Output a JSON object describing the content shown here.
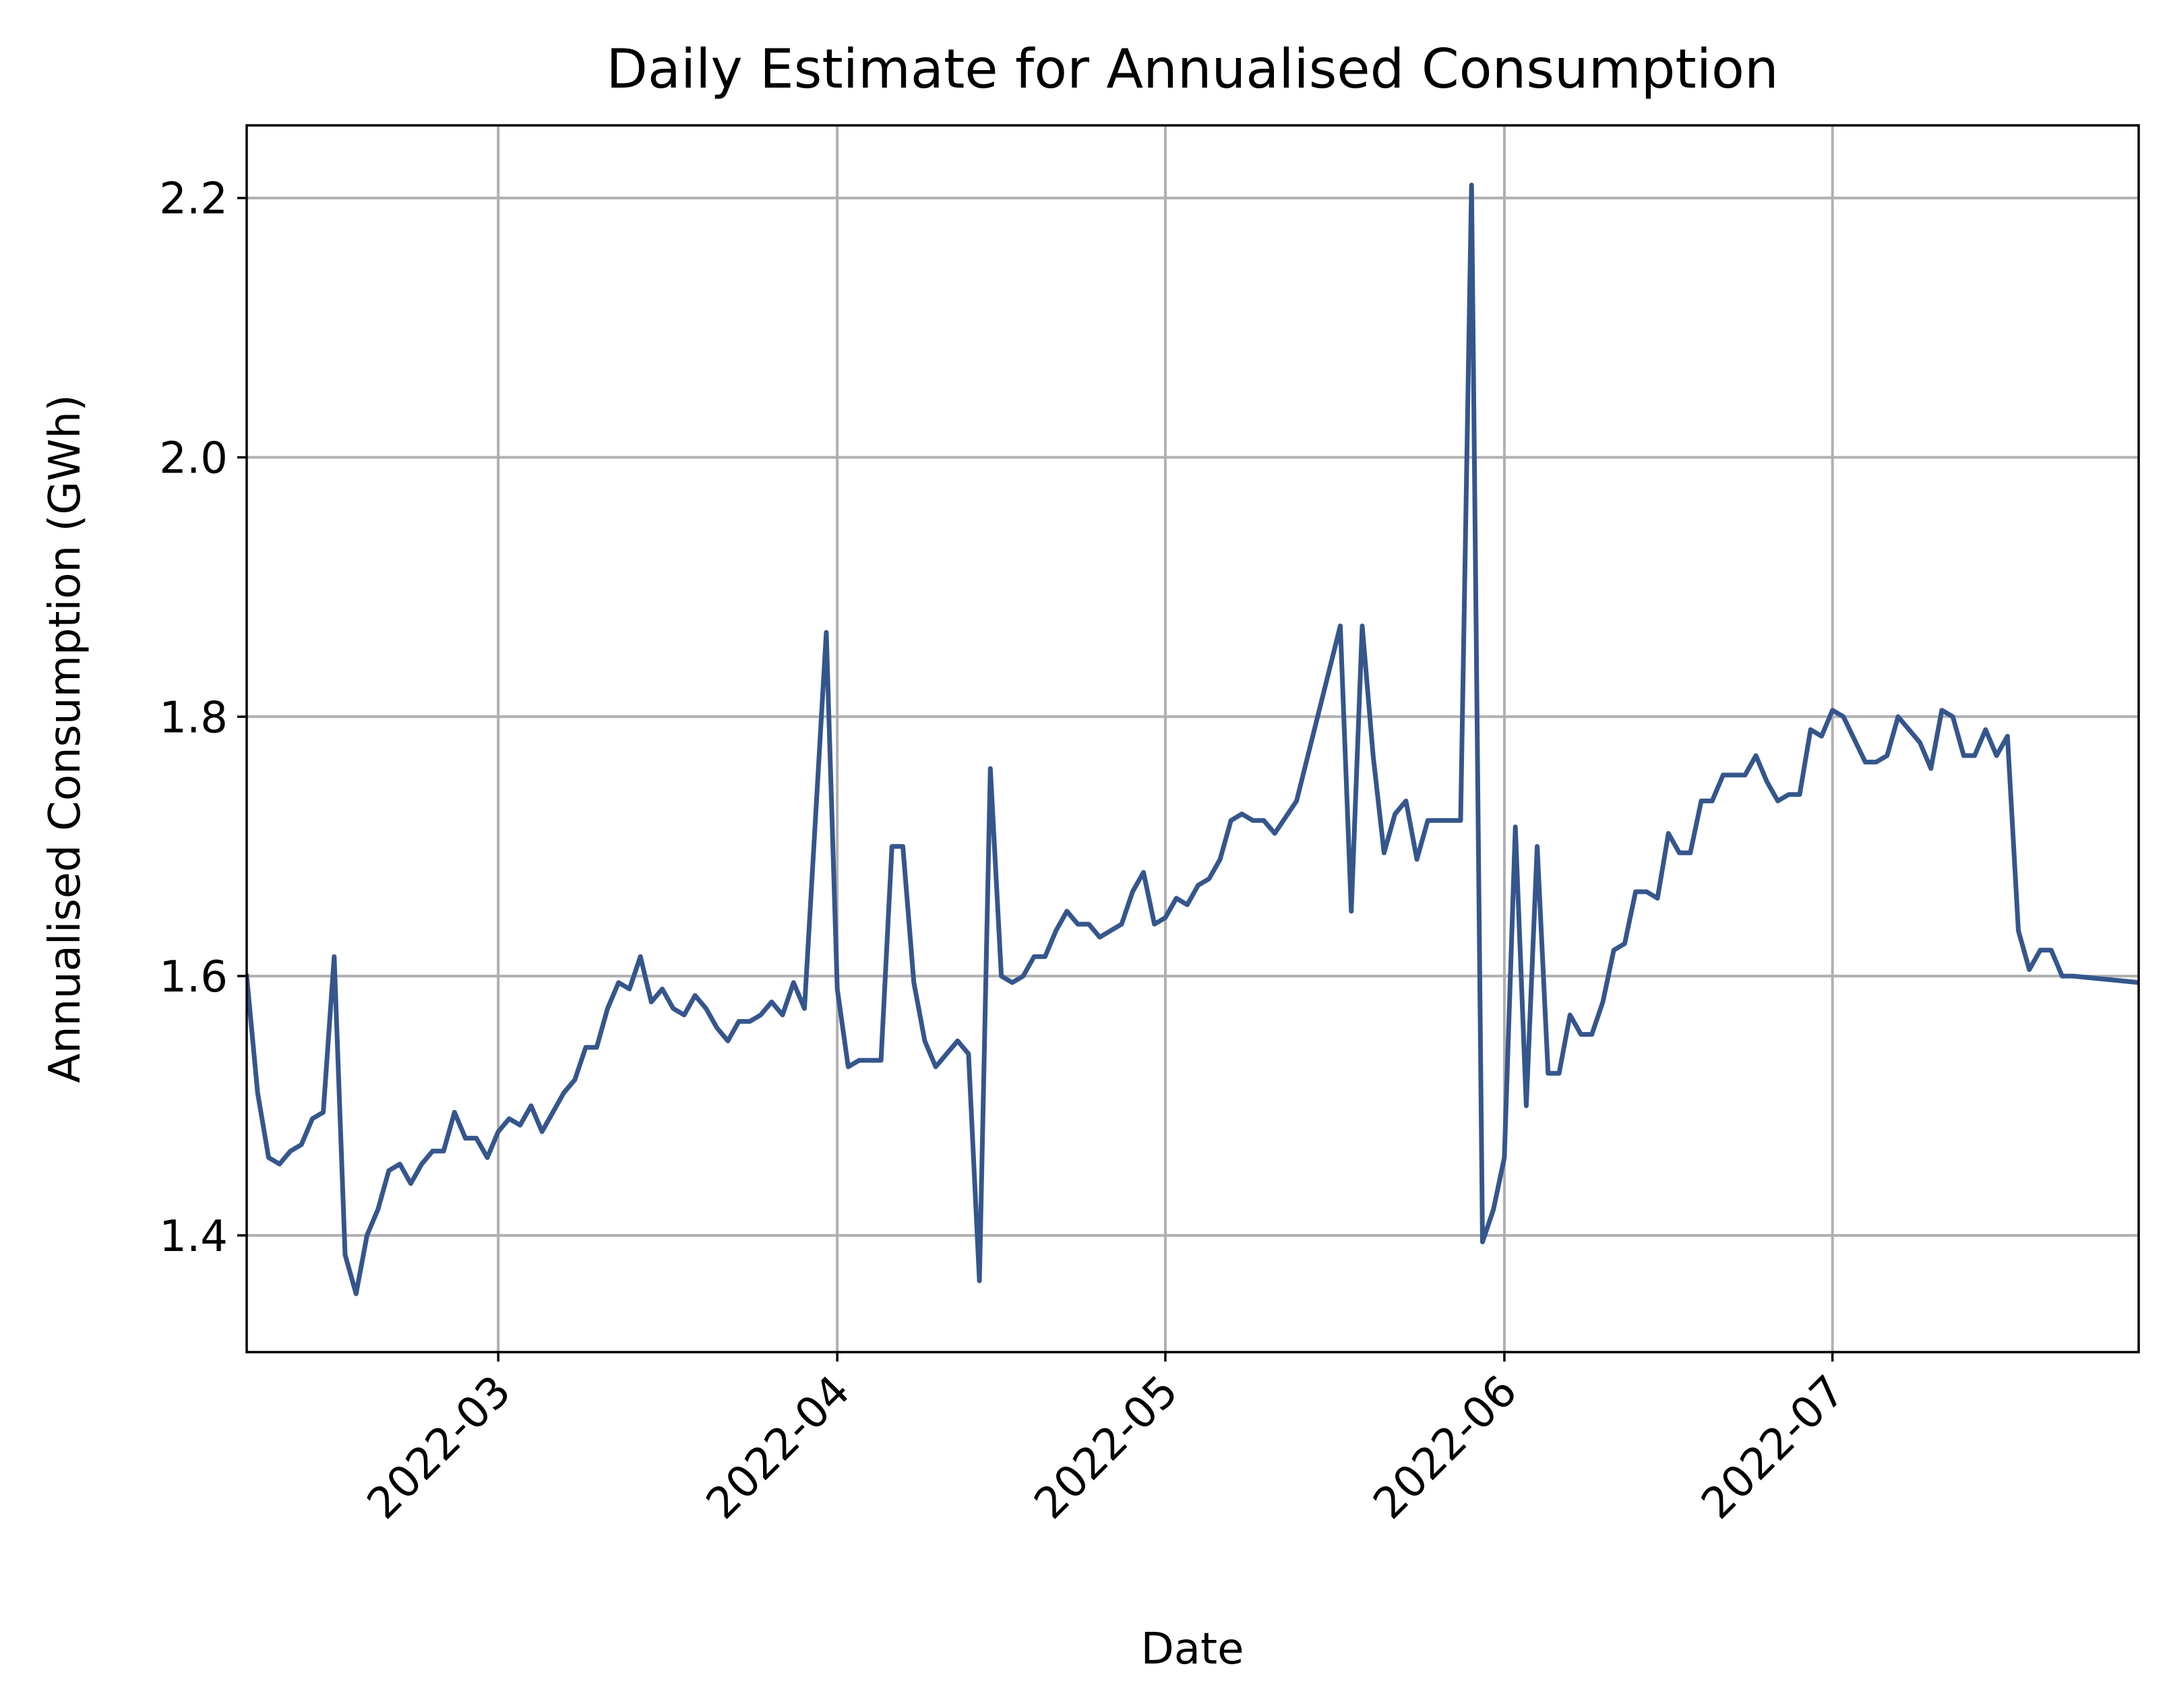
{
  "chart_data": {
    "type": "line",
    "title": "Daily Estimate for Annualised Consumption",
    "xlabel": "Date",
    "ylabel": "Annualised Consumption (GWh)",
    "xlim": [
      "2022-02-06",
      "2022-07-29"
    ],
    "ylim": [
      1.31,
      2.256
    ],
    "x_ticks": [
      "2022-03-01",
      "2022-04-01",
      "2022-05-01",
      "2022-06-01",
      "2022-07-01"
    ],
    "x_tick_labels": [
      "2022-03",
      "2022-04",
      "2022-05",
      "2022-06",
      "2022-07"
    ],
    "y_ticks": [
      1.4,
      1.6,
      1.8,
      2.0,
      2.2
    ],
    "y_tick_labels": [
      "1.4",
      "1.6",
      "1.8",
      "2.0",
      "2.2"
    ],
    "grid": true,
    "series": [
      {
        "color": "#35568c",
        "x": [
          "2022-02-06",
          "2022-02-07",
          "2022-02-08",
          "2022-02-09",
          "2022-02-10",
          "2022-02-11",
          "2022-02-12",
          "2022-02-13",
          "2022-02-14",
          "2022-02-15",
          "2022-02-16",
          "2022-02-17",
          "2022-02-18",
          "2022-02-19",
          "2022-02-20",
          "2022-02-21",
          "2022-02-22",
          "2022-02-23",
          "2022-02-24",
          "2022-02-25",
          "2022-02-26",
          "2022-02-27",
          "2022-02-28",
          "2022-03-01",
          "2022-03-02",
          "2022-03-03",
          "2022-03-04",
          "2022-03-05",
          "2022-03-06",
          "2022-03-07",
          "2022-03-08",
          "2022-03-09",
          "2022-03-10",
          "2022-03-11",
          "2022-03-12",
          "2022-03-13",
          "2022-03-14",
          "2022-03-15",
          "2022-03-16",
          "2022-03-17",
          "2022-03-18",
          "2022-03-19",
          "2022-03-20",
          "2022-03-21",
          "2022-03-22",
          "2022-03-23",
          "2022-03-24",
          "2022-03-25",
          "2022-03-26",
          "2022-03-27",
          "2022-03-28",
          "2022-03-29",
          "2022-03-30",
          "2022-03-31",
          "2022-04-01",
          "2022-04-02",
          "2022-04-03",
          "2022-04-04",
          "2022-04-05",
          "2022-04-06",
          "2022-04-07",
          "2022-04-08",
          "2022-04-09",
          "2022-04-10",
          "2022-04-11",
          "2022-04-12",
          "2022-04-13",
          "2022-04-14",
          "2022-04-15",
          "2022-04-16",
          "2022-04-17",
          "2022-04-18",
          "2022-04-19",
          "2022-04-20",
          "2022-04-21",
          "2022-04-22",
          "2022-04-23",
          "2022-04-24",
          "2022-04-25",
          "2022-04-26",
          "2022-04-27",
          "2022-04-28",
          "2022-04-29",
          "2022-04-30",
          "2022-05-01",
          "2022-05-02",
          "2022-05-03",
          "2022-05-04",
          "2022-05-05",
          "2022-05-06",
          "2022-05-07",
          "2022-05-08",
          "2022-05-09",
          "2022-05-10",
          "2022-05-11",
          "2022-05-13",
          "2022-05-17",
          "2022-05-18",
          "2022-05-19",
          "2022-05-20",
          "2022-05-21",
          "2022-05-22",
          "2022-05-23",
          "2022-05-24",
          "2022-05-25",
          "2022-05-28",
          "2022-05-29",
          "2022-05-30",
          "2022-05-31",
          "2022-06-01",
          "2022-06-02",
          "2022-06-03",
          "2022-06-04",
          "2022-06-05",
          "2022-06-06",
          "2022-06-07",
          "2022-06-08",
          "2022-06-09",
          "2022-06-10",
          "2022-06-11",
          "2022-06-12",
          "2022-06-13",
          "2022-06-14",
          "2022-06-15",
          "2022-06-16",
          "2022-06-17",
          "2022-06-18",
          "2022-06-19",
          "2022-06-20",
          "2022-06-21",
          "2022-06-22",
          "2022-06-23",
          "2022-06-24",
          "2022-06-25",
          "2022-06-26",
          "2022-06-27",
          "2022-06-28",
          "2022-06-29",
          "2022-06-30",
          "2022-07-01",
          "2022-07-02",
          "2022-07-04",
          "2022-07-05",
          "2022-07-06",
          "2022-07-07",
          "2022-07-08",
          "2022-07-09",
          "2022-07-10",
          "2022-07-11",
          "2022-07-12",
          "2022-07-13",
          "2022-07-14",
          "2022-07-15",
          "2022-07-16",
          "2022-07-17",
          "2022-07-18",
          "2022-07-19",
          "2022-07-20",
          "2022-07-21",
          "2022-07-22",
          "2022-07-23",
          "2022-07-29"
        ],
        "values": [
          1.6,
          1.51,
          1.46,
          1.455,
          1.465,
          1.47,
          1.49,
          1.495,
          1.615,
          1.385,
          1.355,
          1.4,
          1.42,
          1.45,
          1.455,
          1.44,
          1.455,
          1.465,
          1.465,
          1.495,
          1.475,
          1.475,
          1.46,
          1.48,
          1.49,
          1.485,
          1.5,
          1.48,
          1.495,
          1.51,
          1.52,
          1.545,
          1.545,
          1.575,
          1.595,
          1.59,
          1.615,
          1.58,
          1.59,
          1.575,
          1.57,
          1.585,
          1.575,
          1.56,
          1.55,
          1.565,
          1.565,
          1.57,
          1.58,
          1.57,
          1.595,
          1.575,
          1.72,
          1.865,
          1.59,
          1.53,
          1.535,
          1.535,
          1.535,
          1.7,
          1.7,
          1.595,
          1.55,
          1.53,
          1.54,
          1.55,
          1.54,
          1.365,
          1.76,
          1.6,
          1.595,
          1.6,
          1.615,
          1.615,
          1.635,
          1.65,
          1.64,
          1.64,
          1.63,
          1.635,
          1.64,
          1.665,
          1.68,
          1.64,
          1.645,
          1.66,
          1.655,
          1.67,
          1.675,
          1.69,
          1.72,
          1.725,
          1.72,
          1.72,
          1.71,
          1.735,
          1.87,
          1.65,
          1.87,
          1.77,
          1.695,
          1.725,
          1.735,
          1.69,
          1.72,
          1.72,
          2.21,
          1.395,
          1.42,
          1.46,
          1.715,
          1.5,
          1.7,
          1.525,
          1.525,
          1.57,
          1.555,
          1.555,
          1.58,
          1.62,
          1.625,
          1.665,
          1.665,
          1.66,
          1.71,
          1.695,
          1.695,
          1.735,
          1.735,
          1.755,
          1.755,
          1.755,
          1.77,
          1.75,
          1.735,
          1.74,
          1.74,
          1.79,
          1.785,
          1.805,
          1.8,
          1.765,
          1.765,
          1.77,
          1.8,
          1.79,
          1.78,
          1.76,
          1.805,
          1.8,
          1.77,
          1.77,
          1.79,
          1.77,
          1.785,
          1.635,
          1.605,
          1.62,
          1.62,
          1.6,
          1.6,
          1.595
        ]
      }
    ]
  }
}
